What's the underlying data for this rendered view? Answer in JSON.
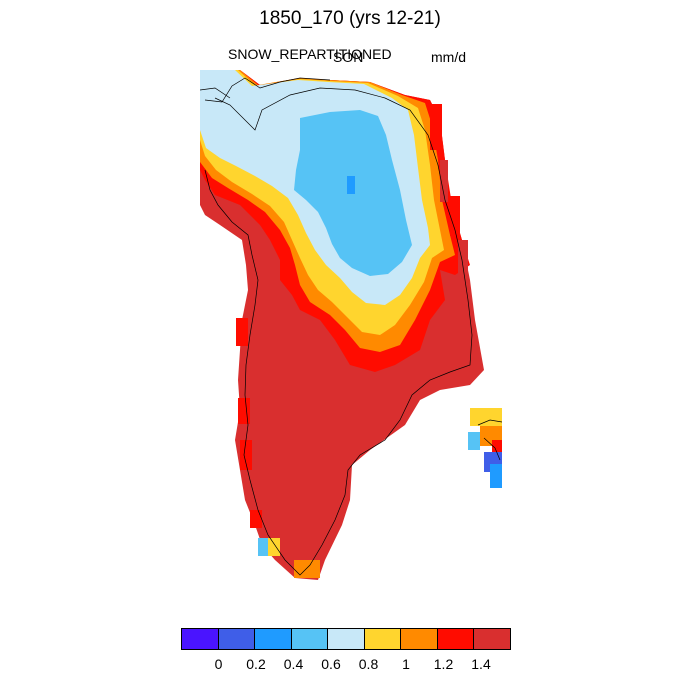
{
  "map": {
    "title": "1850_170 (yrs 12-21)",
    "variable": "SNOW_REPARTITIONED",
    "season": "SON",
    "units": "mm/d"
  },
  "colorbar": {
    "colors": [
      "#4a14ff",
      "#3f5ee8",
      "#1f9bff",
      "#56c3f5",
      "#c8e8f8",
      "#ffd52e",
      "#ff8a00",
      "#ff0c00",
      "#d92f2f"
    ],
    "labels": [
      "0",
      "0.2",
      "0.4",
      "0.6",
      "0.8",
      "1",
      "1.2",
      "1.4"
    ]
  },
  "palette": {
    "dark_red": "#d92f2f",
    "red": "#ff0c00",
    "orange": "#ff8a00",
    "yellow": "#ffd52e",
    "pale_blue": "#c8e8f8",
    "light_blue": "#56c3f5",
    "blue": "#1f9bff",
    "royal_blue": "#3f5ee8",
    "violet": "#4a14ff"
  }
}
